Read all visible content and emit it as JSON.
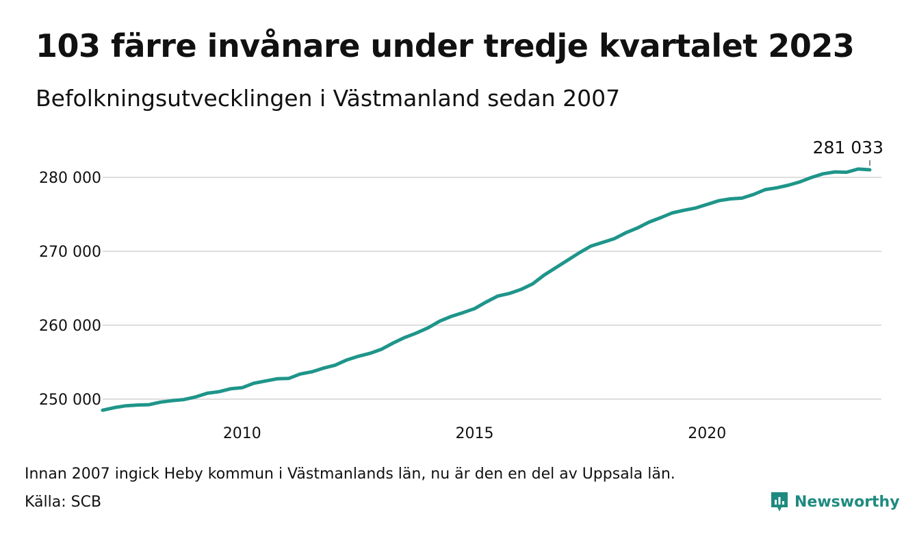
{
  "title": "103 färre invånare under tredje kvartalet 2023",
  "subtitle": "Befolkningsutvecklingen i Västmanland sedan 2007",
  "note": "Innan 2007 ingick Heby kommun i Västmanlands län, nu är den en del av Uppsala län.",
  "source": "Källa: SCB",
  "brand": {
    "name": "Newsworthy",
    "icon": "newsworthy-logo-icon",
    "color": "#1f8a80"
  },
  "colors": {
    "line": "#1f958a",
    "grid": "#dddddd",
    "text": "#111111"
  },
  "chart_data": {
    "type": "line",
    "title": "103 färre invånare under tredje kvartalet 2023",
    "xlabel": "",
    "ylabel": "",
    "x_ticks": [
      2010,
      2015,
      2020
    ],
    "y_ticks": [
      250000,
      260000,
      270000,
      280000
    ],
    "y_tick_labels": [
      "250 000",
      "260 000",
      "270 000",
      "280 000"
    ],
    "xlim": [
      2007.0,
      2023.75
    ],
    "ylim": [
      247500,
      282700
    ],
    "grid": true,
    "legend": "none",
    "end_label": "281 033",
    "series": [
      {
        "x": [
          2007.0,
          2007.25,
          2007.5,
          2007.75,
          2008.0,
          2008.25,
          2008.5,
          2008.75,
          2009.0,
          2009.25,
          2009.5,
          2009.75,
          2010.0,
          2010.25,
          2010.5,
          2010.75,
          2011.0,
          2011.25,
          2011.5,
          2011.75,
          2012.0,
          2012.25,
          2012.5,
          2012.75,
          2013.0,
          2013.25,
          2013.5,
          2013.75,
          2014.0,
          2014.25,
          2014.5,
          2014.75,
          2015.0,
          2015.25,
          2015.5,
          2015.75,
          2016.0,
          2016.25,
          2016.5,
          2016.75,
          2017.0,
          2017.25,
          2017.5,
          2017.75,
          2018.0,
          2018.25,
          2018.5,
          2018.75,
          2019.0,
          2019.25,
          2019.5,
          2019.75,
          2020.0,
          2020.25,
          2020.5,
          2020.75,
          2021.0,
          2021.25,
          2021.5,
          2021.75,
          2022.0,
          2022.25,
          2022.5,
          2022.75,
          2023.0,
          2023.25,
          2023.5
        ],
        "values": [
          248500,
          248850,
          249100,
          249200,
          249250,
          249600,
          249800,
          249950,
          250300,
          250800,
          251000,
          251400,
          251550,
          252150,
          252450,
          252750,
          252800,
          253400,
          253700,
          254200,
          254600,
          255300,
          255800,
          256200,
          256750,
          257600,
          258350,
          258950,
          259650,
          260550,
          261200,
          261700,
          262250,
          263150,
          263950,
          264300,
          264850,
          265600,
          266800,
          267800,
          268800,
          269800,
          270700,
          271200,
          271700,
          272500,
          273150,
          273950,
          274550,
          275200,
          275550,
          275850,
          276350,
          276850,
          277100,
          277200,
          277700,
          278350,
          278600,
          278950,
          279400,
          280000,
          280500,
          280750,
          280700,
          281136,
          281033
        ]
      }
    ]
  }
}
